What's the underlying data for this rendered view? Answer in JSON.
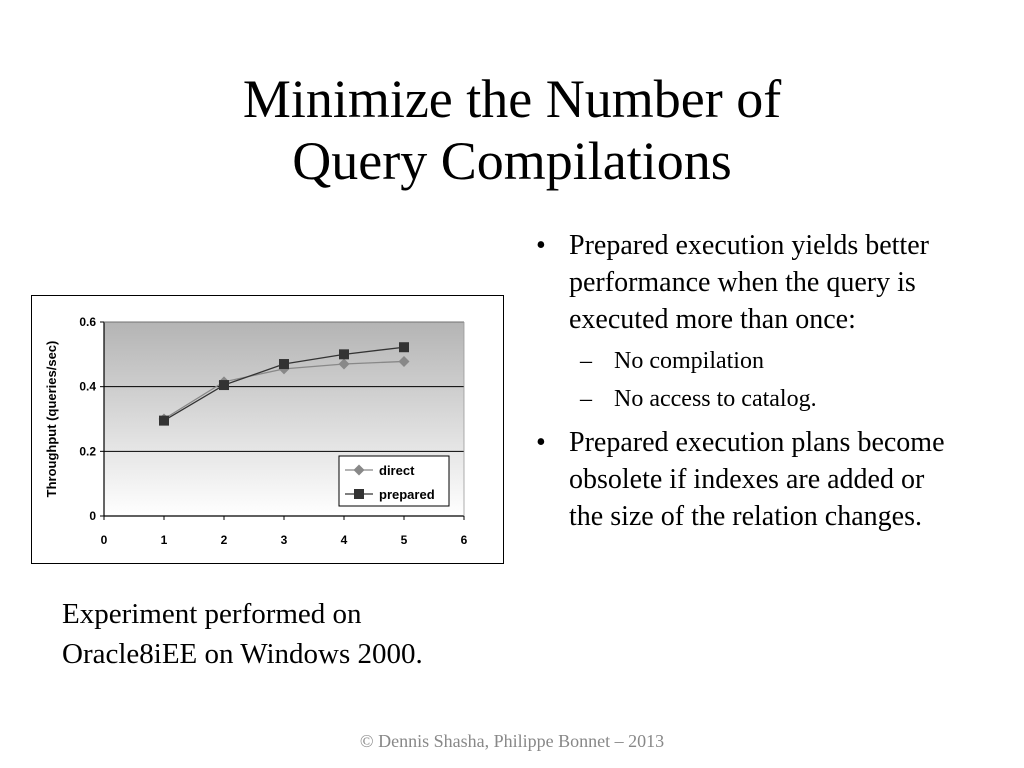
{
  "title": {
    "line1": "Minimize the Number of",
    "line2": "Query Compilations"
  },
  "chart_data": {
    "type": "line",
    "ylabel": "Throughput (queries/sec)",
    "xlim": [
      0,
      6
    ],
    "ylim": [
      0,
      0.6
    ],
    "x_ticks": [
      "0",
      "1",
      "2",
      "3",
      "4",
      "5",
      "6"
    ],
    "y_ticks": [
      "0",
      "0.2",
      "0.4",
      "0.6"
    ],
    "legend_position": "bottom-right",
    "series": [
      {
        "name": "direct",
        "marker": "diamond",
        "color": "#888888",
        "x": [
          1,
          2,
          3,
          4,
          5
        ],
        "y": [
          0.3,
          0.415,
          0.455,
          0.47,
          0.478
        ]
      },
      {
        "name": "prepared",
        "marker": "square",
        "color": "#333333",
        "x": [
          1,
          2,
          3,
          4,
          5
        ],
        "y": [
          0.295,
          0.405,
          0.47,
          0.5,
          0.522
        ]
      }
    ]
  },
  "caption": {
    "line1": "Experiment performed on",
    "line2": "Oracle8iEE on Windows 2000."
  },
  "bullets": [
    {
      "text": "Prepared execution yields better performance when the query is executed more than once:",
      "subs": [
        "No compilation",
        "No access to catalog."
      ]
    },
    {
      "text": "Prepared execution plans become obsolete if indexes are added or the size of the relation changes."
    }
  ],
  "footer": "© Dennis Shasha, Philippe Bonnet – 2013"
}
